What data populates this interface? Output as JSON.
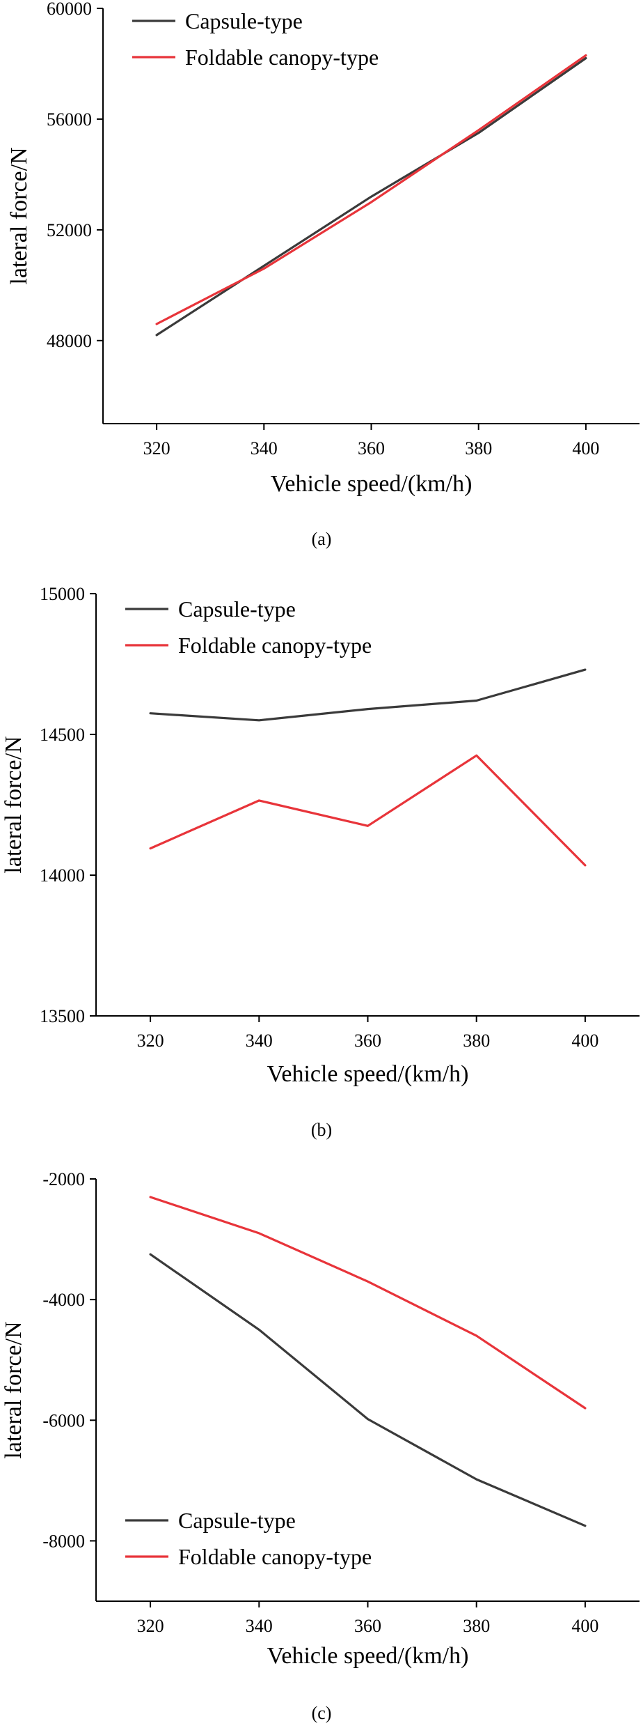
{
  "figure": {
    "captions": [
      "(a)",
      "(b)",
      "(c)"
    ]
  },
  "colors": {
    "capsule": "#3a3a3a",
    "foldable": "#e8343a",
    "axis": "#000000"
  },
  "chart_data": [
    {
      "type": "line",
      "panel": "(a)",
      "xlabel": "Vehicle speed/(km/h)",
      "ylabel": "lateral force/N",
      "xlim": [
        310,
        410
      ],
      "ylim": [
        45000,
        60000
      ],
      "x": [
        320,
        340,
        360,
        380,
        400
      ],
      "xticks": [
        320,
        340,
        360,
        380,
        400
      ],
      "yticks": [
        48000,
        52000,
        56000,
        60000
      ],
      "legend_position": "top-left",
      "series": [
        {
          "name": "Capsule-type",
          "values": [
            48200,
            50700,
            53200,
            55500,
            58200
          ]
        },
        {
          "name": "Foldable canopy-type",
          "values": [
            48600,
            50600,
            53000,
            55600,
            58300
          ]
        }
      ]
    },
    {
      "type": "line",
      "panel": "(b)",
      "xlabel": "Vehicle speed/(km/h)",
      "ylabel": "lateral force/N",
      "xlim": [
        310,
        410
      ],
      "ylim": [
        13500,
        15000
      ],
      "x": [
        320,
        340,
        360,
        380,
        400
      ],
      "xticks": [
        320,
        340,
        360,
        380,
        400
      ],
      "yticks": [
        13500,
        14000,
        14500,
        15000
      ],
      "legend_position": "top-left",
      "series": [
        {
          "name": "Capsule-type",
          "values": [
            14575,
            14550,
            14590,
            14620,
            14730
          ]
        },
        {
          "name": "Foldable canopy-type",
          "values": [
            14095,
            14265,
            14175,
            14425,
            14035
          ]
        }
      ]
    },
    {
      "type": "line",
      "panel": "(c)",
      "xlabel": "Vehicle speed/(km/h)",
      "ylabel": "lateral force/N",
      "xlim": [
        310,
        410
      ],
      "ylim": [
        -9000,
        -2000
      ],
      "x": [
        320,
        340,
        360,
        380,
        400
      ],
      "xticks": [
        320,
        340,
        360,
        380,
        400
      ],
      "yticks": [
        -8000,
        -6000,
        -4000,
        -2000
      ],
      "legend_position": "bottom-left",
      "series": [
        {
          "name": "Capsule-type",
          "values": [
            -3250,
            -4500,
            -5980,
            -6980,
            -7750
          ]
        },
        {
          "name": "Foldable canopy-type",
          "values": [
            -2300,
            -2900,
            -3700,
            -4600,
            -5800
          ]
        }
      ]
    }
  ]
}
